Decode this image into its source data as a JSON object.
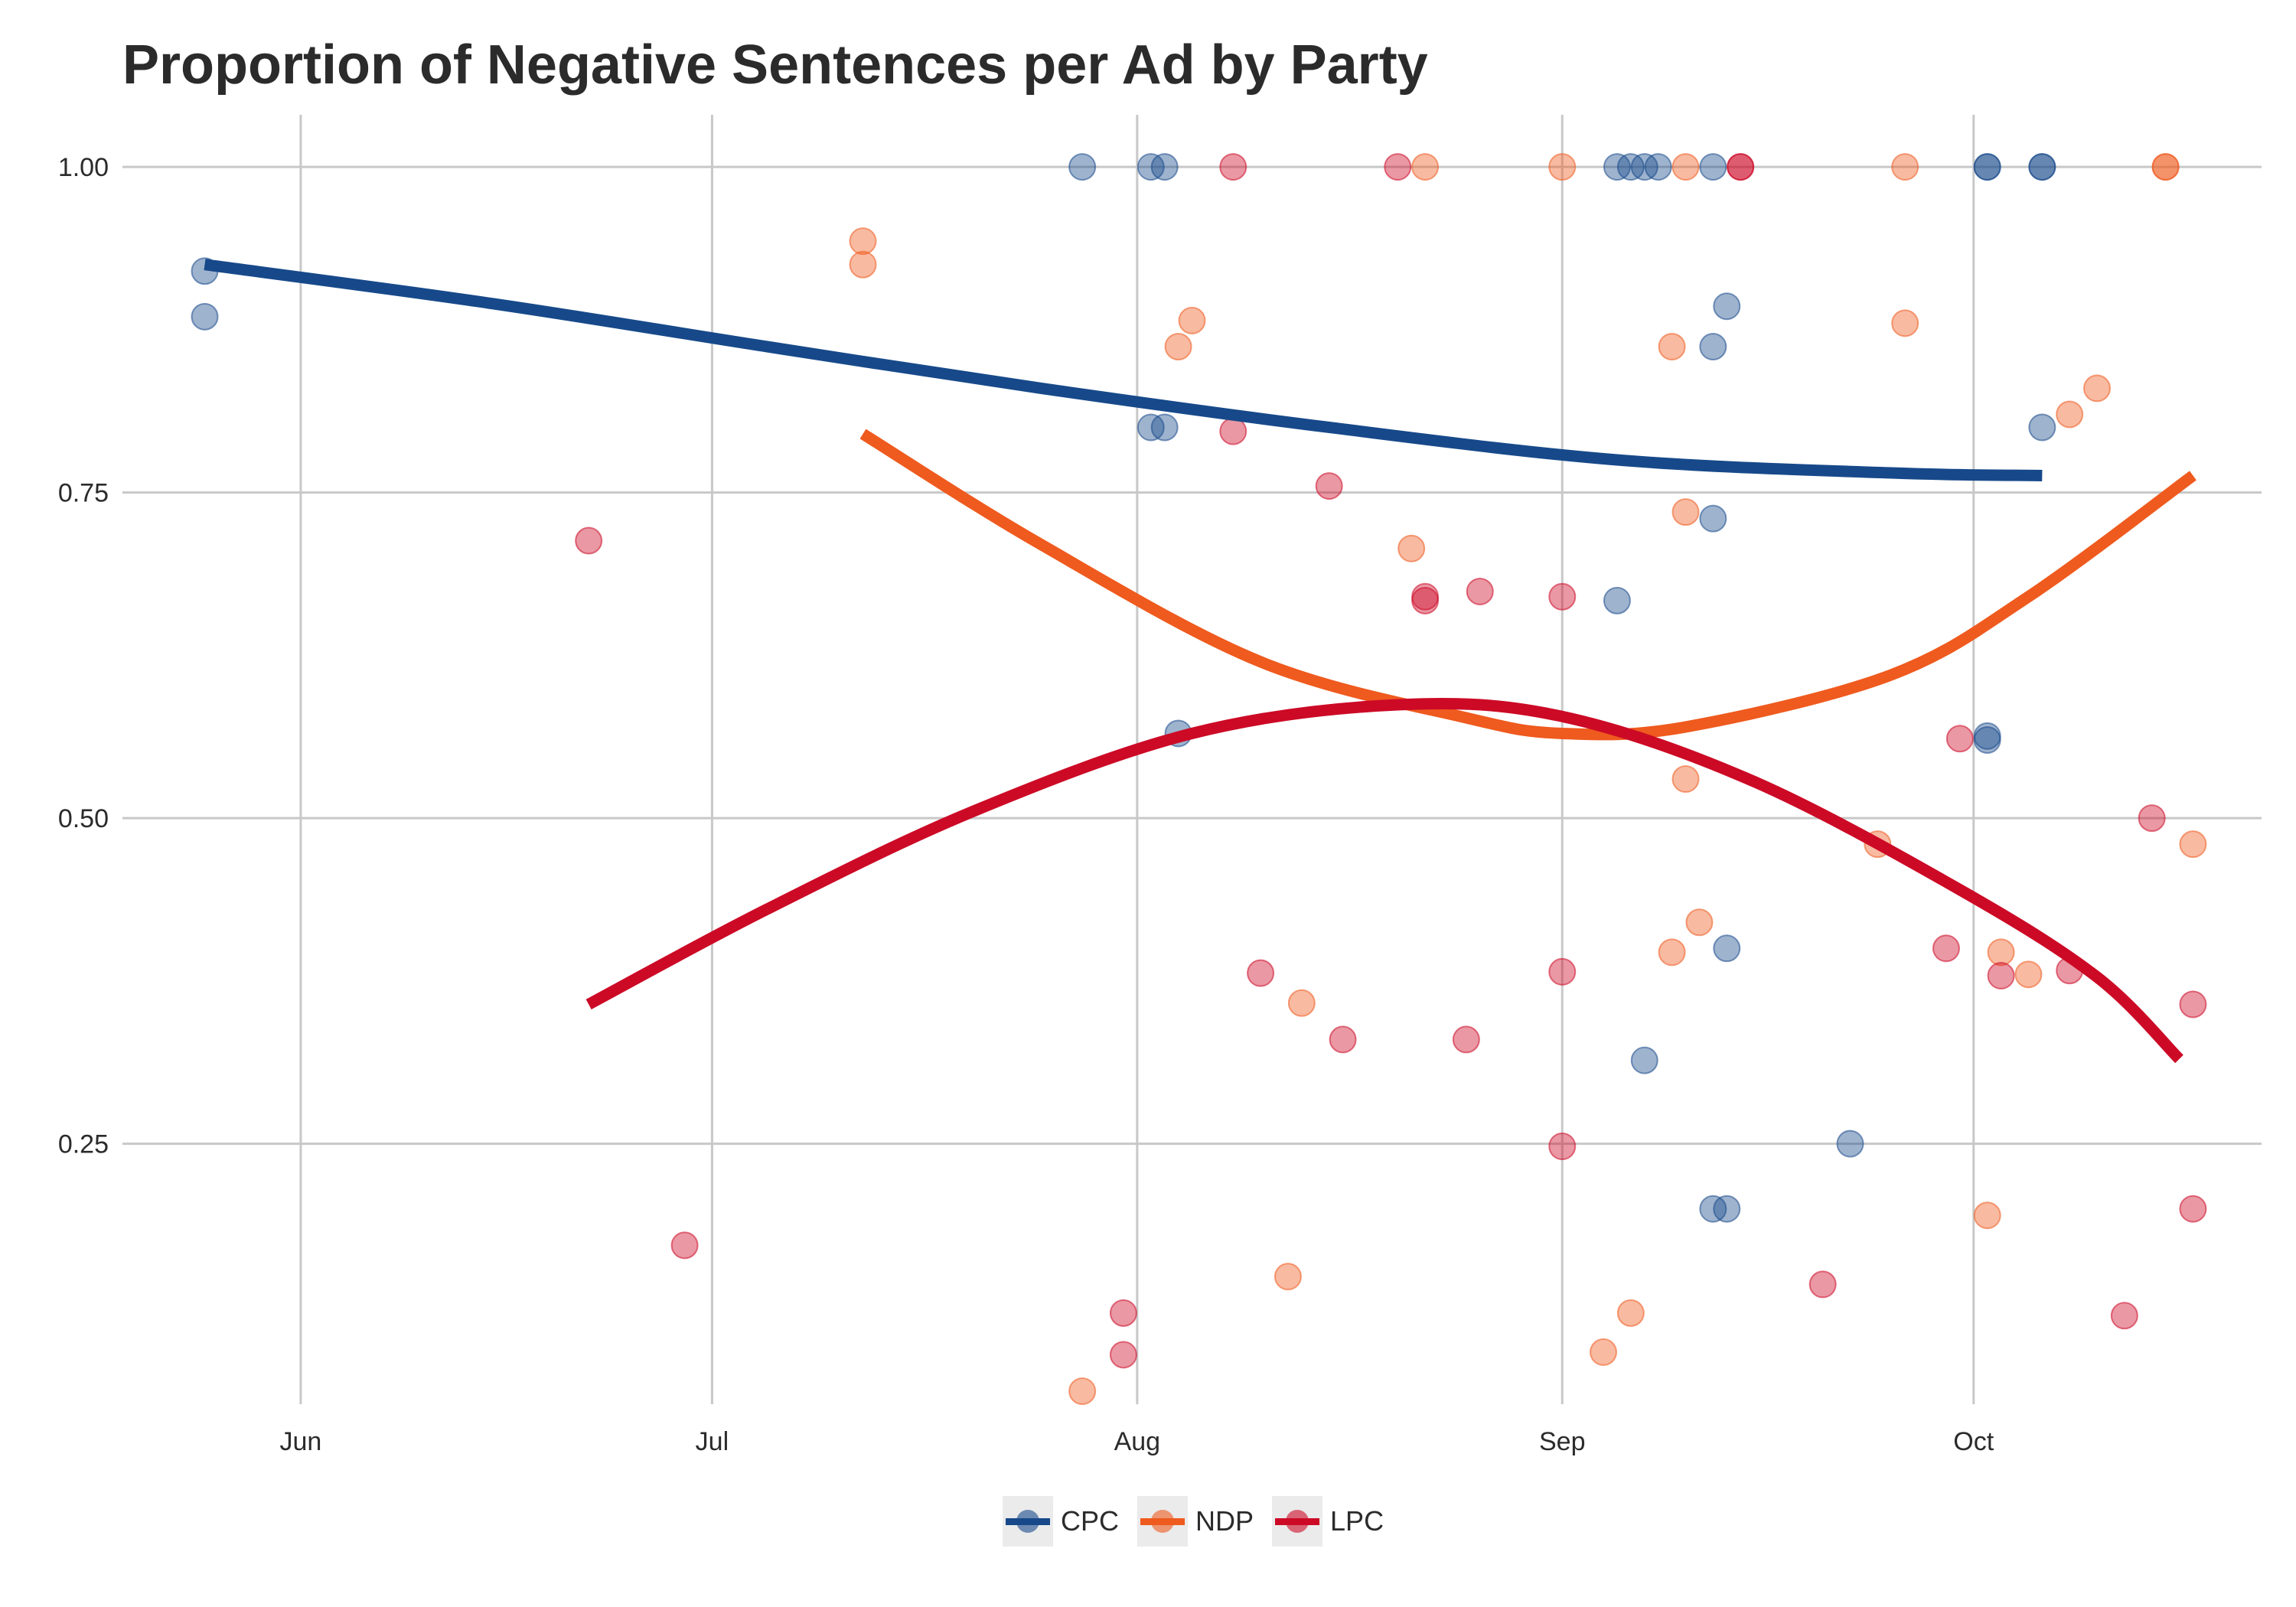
{
  "chart_data": {
    "type": "scatter",
    "title": "Proportion of Negative Sentences per Ad by Party",
    "xlabel": "",
    "ylabel": "",
    "x_axis": {
      "type": "date",
      "range": [
        "2015-05-19",
        "2015-10-22"
      ],
      "ticks": [
        "2015-06-01",
        "2015-07-01",
        "2015-08-01",
        "2015-09-01",
        "2015-10-01"
      ],
      "tick_labels": [
        "Jun",
        "Jul",
        "Aug",
        "Sep",
        "Oct"
      ]
    },
    "y_axis": {
      "range": [
        0.05,
        1.04
      ],
      "ticks": [
        0.25,
        0.5,
        0.75,
        1.0
      ],
      "tick_labels": [
        "0.25",
        "0.50",
        "0.75",
        "1.00"
      ]
    },
    "grid": true,
    "legend_position": "bottom",
    "series": [
      {
        "name": "CPC",
        "color": "#17498A",
        "points": [
          [
            "2015-05-25",
            0.92
          ],
          [
            "2015-05-25",
            0.885
          ],
          [
            "2015-07-28",
            1.0
          ],
          [
            "2015-08-02",
            1.0
          ],
          [
            "2015-08-03",
            1.0
          ],
          [
            "2015-08-02",
            0.8
          ],
          [
            "2015-08-03",
            0.8
          ],
          [
            "2015-08-04",
            0.565
          ],
          [
            "2015-09-05",
            1.0
          ],
          [
            "2015-09-06",
            1.0
          ],
          [
            "2015-09-07",
            1.0
          ],
          [
            "2015-09-08",
            1.0
          ],
          [
            "2015-09-12",
            1.0
          ],
          [
            "2015-09-13",
            0.893
          ],
          [
            "2015-09-12",
            0.862
          ],
          [
            "2015-09-12",
            0.73
          ],
          [
            "2015-09-05",
            0.667
          ],
          [
            "2015-09-13",
            0.4
          ],
          [
            "2015-09-07",
            0.314
          ],
          [
            "2015-09-12",
            0.2
          ],
          [
            "2015-09-13",
            0.2
          ],
          [
            "2015-09-22",
            0.25
          ],
          [
            "2015-10-02",
            1.0
          ],
          [
            "2015-10-02",
            1.0
          ],
          [
            "2015-10-06",
            1.0
          ],
          [
            "2015-10-06",
            1.0
          ],
          [
            "2015-10-06",
            0.8
          ],
          [
            "2015-10-02",
            0.563
          ],
          [
            "2015-10-02",
            0.56
          ]
        ],
        "trend": [
          [
            "2015-05-25",
            0.925
          ],
          [
            "2015-06-15",
            0.895
          ],
          [
            "2015-07-05",
            0.862
          ],
          [
            "2015-07-25",
            0.83
          ],
          [
            "2015-08-15",
            0.8
          ],
          [
            "2015-09-05",
            0.775
          ],
          [
            "2015-09-25",
            0.765
          ],
          [
            "2015-10-06",
            0.763
          ]
        ]
      },
      {
        "name": "NDP",
        "color": "#EF5A1E",
        "points": [
          [
            "2015-07-12",
            0.943
          ],
          [
            "2015-07-12",
            0.925
          ],
          [
            "2015-07-28",
            0.06
          ],
          [
            "2015-08-05",
            0.882
          ],
          [
            "2015-08-04",
            0.862
          ],
          [
            "2015-08-13",
            0.358
          ],
          [
            "2015-08-12",
            0.148
          ],
          [
            "2015-08-21",
            0.707
          ],
          [
            "2015-08-22",
            1.0
          ],
          [
            "2015-09-01",
            1.0
          ],
          [
            "2015-09-04",
            0.09
          ],
          [
            "2015-09-06",
            0.12
          ],
          [
            "2015-09-09",
            0.862
          ],
          [
            "2015-09-10",
            1.0
          ],
          [
            "2015-09-10",
            0.735
          ],
          [
            "2015-09-10",
            0.53
          ],
          [
            "2015-09-11",
            0.42
          ],
          [
            "2015-09-09",
            0.397
          ],
          [
            "2015-09-24",
            0.48
          ],
          [
            "2015-09-26",
            0.88
          ],
          [
            "2015-09-26",
            1.0
          ],
          [
            "2015-10-02",
            0.195
          ],
          [
            "2015-10-03",
            0.397
          ],
          [
            "2015-10-05",
            0.38
          ],
          [
            "2015-10-08",
            0.81
          ],
          [
            "2015-10-10",
            0.83
          ],
          [
            "2015-10-15",
            1.0
          ],
          [
            "2015-10-15",
            1.0
          ],
          [
            "2015-10-17",
            0.48
          ]
        ],
        "trend": [
          [
            "2015-07-12",
            0.795
          ],
          [
            "2015-07-25",
            0.71
          ],
          [
            "2015-08-10",
            0.62
          ],
          [
            "2015-08-25",
            0.577
          ],
          [
            "2015-09-01",
            0.565
          ],
          [
            "2015-09-10",
            0.57
          ],
          [
            "2015-09-25",
            0.61
          ],
          [
            "2015-10-05",
            0.67
          ],
          [
            "2015-10-17",
            0.763
          ]
        ]
      },
      {
        "name": "LPC",
        "color": "#CC0A26",
        "points": [
          [
            "2015-06-22",
            0.713
          ],
          [
            "2015-06-29",
            0.172
          ],
          [
            "2015-07-31",
            0.12
          ],
          [
            "2015-07-31",
            0.088
          ],
          [
            "2015-08-08",
            1.0
          ],
          [
            "2015-08-08",
            0.797
          ],
          [
            "2015-08-10",
            0.381
          ],
          [
            "2015-08-15",
            0.755
          ],
          [
            "2015-08-16",
            0.33
          ],
          [
            "2015-08-20",
            1.0
          ],
          [
            "2015-08-22",
            0.67
          ],
          [
            "2015-08-22",
            0.667
          ],
          [
            "2015-08-25",
            0.33
          ],
          [
            "2015-08-26",
            0.674
          ],
          [
            "2015-09-01",
            0.67
          ],
          [
            "2015-09-01",
            0.382
          ],
          [
            "2015-09-01",
            0.248
          ],
          [
            "2015-09-14",
            1.0
          ],
          [
            "2015-09-14",
            1.0
          ],
          [
            "2015-09-20",
            0.142
          ],
          [
            "2015-09-29",
            0.4
          ],
          [
            "2015-09-30",
            0.561
          ],
          [
            "2015-10-03",
            0.379
          ],
          [
            "2015-10-08",
            0.383
          ],
          [
            "2015-10-12",
            0.118
          ],
          [
            "2015-10-14",
            0.5
          ],
          [
            "2015-10-17",
            0.357
          ],
          [
            "2015-10-17",
            0.2
          ]
        ],
        "trend": [
          [
            "2015-06-22",
            0.357
          ],
          [
            "2015-07-05",
            0.43
          ],
          [
            "2015-07-20",
            0.505
          ],
          [
            "2015-08-05",
            0.565
          ],
          [
            "2015-08-20",
            0.587
          ],
          [
            "2015-09-01",
            0.578
          ],
          [
            "2015-09-15",
            0.528
          ],
          [
            "2015-09-30",
            0.445
          ],
          [
            "2015-10-10",
            0.378
          ],
          [
            "2015-10-16",
            0.315
          ]
        ]
      }
    ]
  }
}
